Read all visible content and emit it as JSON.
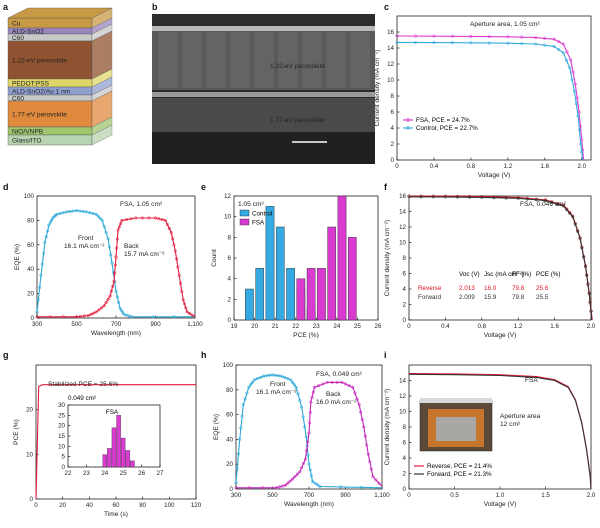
{
  "panel_letters": [
    "a",
    "b",
    "c",
    "d",
    "e",
    "f",
    "g",
    "h",
    "i"
  ],
  "colors": {
    "cyan": "#2aa7d8",
    "magenta": "#d93bd0",
    "red": "#e21b3a",
    "purple": "#c422b8",
    "blue": "#35a9e1",
    "dark": "#333333",
    "accent_red": "#d8141e"
  },
  "panel_a": {
    "layers": [
      {
        "label": "Cu",
        "color": "#c99a45"
      },
      {
        "label": "ALD-SnO2",
        "color": "#9a86bf"
      },
      {
        "label": "C60",
        "color": "#c8c8c8"
      },
      {
        "label": "1.22-eV perovskite",
        "color": "#8f5331"
      },
      {
        "label": "PEDOT:PSS",
        "color": "#dfd66a"
      },
      {
        "label": "ALD-SnO2/Au 1 nm",
        "color": "#8f9fcf"
      },
      {
        "label": "C60",
        "color": "#c8c8c8"
      },
      {
        "label": "1.77-eV perovskite",
        "color": "#e08a3e"
      },
      {
        "label": "NiO/VNPB",
        "color": "#9fc56f"
      },
      {
        "label": "Glass/ITO",
        "color": "#b7d3b0"
      }
    ]
  },
  "panel_b": {
    "labels": [
      "1.22-eV perovskite",
      "1.77-eV perovskite"
    ],
    "scale_bar": "1 μm"
  },
  "chart_data": [
    {
      "panel": "c",
      "type": "line",
      "title": "Aperture area, 1.05 cm²",
      "xlabel": "Voltage (V)",
      "ylabel": "Current density (mA cm⁻²)",
      "xlim": [
        0,
        2.1
      ],
      "ylim": [
        0,
        18
      ],
      "xticks": [
        "0",
        "0.4",
        "0.8",
        "1.2",
        "1.6",
        "2.0"
      ],
      "yticks": [
        "0",
        "2",
        "4",
        "6",
        "8",
        "10",
        "12",
        "14",
        "16"
      ],
      "legend_position": "bottom-left",
      "series": [
        {
          "name": "FSA, PCE = 24.7%",
          "color": "#d93bd0",
          "points": [
            [
              0,
              15.5
            ],
            [
              0.4,
              15.48
            ],
            [
              0.8,
              15.45
            ],
            [
              1.2,
              15.4
            ],
            [
              1.5,
              15.3
            ],
            [
              1.7,
              15.1
            ],
            [
              1.8,
              14.5
            ],
            [
              1.88,
              12.5
            ],
            [
              1.93,
              9.5
            ],
            [
              1.97,
              6
            ],
            [
              2.0,
              2.5
            ],
            [
              2.02,
              0
            ]
          ]
        },
        {
          "name": "Control, PCE = 22.7%",
          "color": "#35a9e1",
          "points": [
            [
              0,
              14.7
            ],
            [
              0.4,
              14.68
            ],
            [
              0.8,
              14.65
            ],
            [
              1.2,
              14.6
            ],
            [
              1.5,
              14.5
            ],
            [
              1.7,
              14.2
            ],
            [
              1.8,
              13.4
            ],
            [
              1.87,
              11.5
            ],
            [
              1.92,
              8.6
            ],
            [
              1.96,
              5.5
            ],
            [
              1.99,
              2
            ],
            [
              2.01,
              0
            ]
          ]
        }
      ]
    },
    {
      "panel": "d",
      "type": "line",
      "title": "FSA, 1.05 cm²",
      "xlabel": "Wavelength (nm)",
      "ylabel": "EQE (%)",
      "xlim": [
        300,
        1100
      ],
      "ylim": [
        0,
        100
      ],
      "xticks": [
        "300",
        "500",
        "700",
        "900",
        "1,100"
      ],
      "yticks": [
        "0",
        "20",
        "40",
        "60",
        "80",
        "100"
      ],
      "annotations": [
        {
          "text": "Front",
          "sub": "16.1 mA cm⁻²",
          "color": "#2aa7d8"
        },
        {
          "text": "Back",
          "sub": "15.7 mA cm⁻²",
          "color": "#e21b3a"
        }
      ],
      "series": [
        {
          "name": "Front",
          "color": "#2aa7d8",
          "points": [
            [
              300,
              5
            ],
            [
              320,
              35
            ],
            [
              340,
              62
            ],
            [
              360,
              76
            ],
            [
              380,
              82
            ],
            [
              400,
              85
            ],
            [
              450,
              87
            ],
            [
              500,
              88
            ],
            [
              550,
              87
            ],
            [
              600,
              85
            ],
            [
              630,
              80
            ],
            [
              660,
              65
            ],
            [
              680,
              45
            ],
            [
              700,
              22
            ],
            [
              720,
              8
            ],
            [
              740,
              3
            ],
            [
              780,
              1
            ],
            [
              1100,
              1
            ]
          ]
        },
        {
          "name": "Back",
          "color": "#e21b3a",
          "points": [
            [
              300,
              1
            ],
            [
              500,
              1
            ],
            [
              560,
              2
            ],
            [
              600,
              5
            ],
            [
              640,
              10
            ],
            [
              670,
              18
            ],
            [
              690,
              30
            ],
            [
              700,
              50
            ],
            [
              710,
              72
            ],
            [
              730,
              80
            ],
            [
              800,
              82
            ],
            [
              900,
              82
            ],
            [
              950,
              80
            ],
            [
              980,
              70
            ],
            [
              1000,
              55
            ],
            [
              1020,
              35
            ],
            [
              1040,
              15
            ],
            [
              1060,
              5
            ],
            [
              1100,
              1
            ]
          ]
        }
      ]
    },
    {
      "panel": "e",
      "type": "bar",
      "title": "1.05 cm²",
      "xlabel": "PCE (%)",
      "ylabel": "Count",
      "xlim": [
        19,
        26
      ],
      "ylim": [
        0,
        12
      ],
      "xticks": [
        "19",
        "20",
        "21",
        "22",
        "23",
        "24",
        "25",
        "26"
      ],
      "yticks": [
        "0",
        "2",
        "4",
        "6",
        "8",
        "10",
        "12"
      ],
      "legend_position": "top-left",
      "series": [
        {
          "name": "Control",
          "color": "#35a9e1",
          "bins": [
            19.75,
            20.25,
            20.75,
            21.25,
            21.75,
            22.25,
            22.75,
            23.25
          ],
          "values": [
            3,
            5,
            11,
            9,
            5,
            3,
            1,
            0
          ]
        },
        {
          "name": "FSA",
          "color": "#d93bd0",
          "bins": [
            22.25,
            22.75,
            23.25,
            23.75,
            24.25,
            24.75
          ],
          "values": [
            4,
            5,
            5,
            9,
            12,
            8
          ]
        }
      ]
    },
    {
      "panel": "f",
      "type": "line",
      "title": "FSA, 0.049 cm²",
      "xlabel": "Voltage (V)",
      "ylabel": "Current density (mA cm⁻²)",
      "xlim": [
        0,
        2.0
      ],
      "ylim": [
        0,
        16
      ],
      "xticks": [
        "0",
        "0.4",
        "0.8",
        "1.2",
        "1.6",
        "2.0"
      ],
      "yticks": [
        "0",
        "2",
        "4",
        "6",
        "8",
        "10",
        "12",
        "14",
        "16"
      ],
      "table": {
        "headers": [
          "",
          "Voc (V)",
          "Jsc (mA cm⁻²)",
          "FF (%)",
          "PCE (%)"
        ],
        "rows": [
          {
            "label": "Reverse",
            "values": [
              "2.013",
              "16.0",
              "79.8",
              "25.6"
            ],
            "color": "#d8141e"
          },
          {
            "label": "Forward",
            "values": [
              "2.009",
              "15.9",
              "79.8",
              "25.5"
            ],
            "color": "#333333"
          }
        ]
      },
      "series": [
        {
          "name": "Reverse",
          "color": "#d8141e",
          "points": [
            [
              0,
              16.0
            ],
            [
              0.4,
              15.98
            ],
            [
              0.8,
              15.92
            ],
            [
              1.2,
              15.8
            ],
            [
              1.5,
              15.5
            ],
            [
              1.7,
              14.8
            ],
            [
              1.8,
              13.4
            ],
            [
              1.88,
              10.6
            ],
            [
              1.94,
              7
            ],
            [
              1.98,
              3.5
            ],
            [
              2.013,
              0
            ]
          ]
        },
        {
          "name": "Forward",
          "color": "#333333",
          "points": [
            [
              0,
              15.9
            ],
            [
              0.4,
              15.88
            ],
            [
              0.8,
              15.82
            ],
            [
              1.2,
              15.7
            ],
            [
              1.5,
              15.4
            ],
            [
              1.7,
              14.7
            ],
            [
              1.8,
              13.3
            ],
            [
              1.88,
              10.5
            ],
            [
              1.94,
              6.9
            ],
            [
              1.98,
              3.4
            ],
            [
              2.009,
              0
            ]
          ]
        }
      ]
    },
    {
      "panel": "g",
      "type": "line",
      "title": "Stabilized PCE = 25.6%",
      "xlabel": "Time (s)",
      "ylabel": "PCE (%)",
      "xlim": [
        0,
        120
      ],
      "ylim": [
        0,
        30
      ],
      "xticks": [
        "0",
        "20",
        "40",
        "60",
        "80",
        "100",
        "120"
      ],
      "yticks": [
        "0",
        "10",
        "20"
      ],
      "series": [
        {
          "name": "",
          "color": "#e21b3a",
          "points": [
            [
              0,
              0
            ],
            [
              2,
              25.2
            ],
            [
              5,
              25.6
            ],
            [
              120,
              25.6
            ]
          ]
        }
      ],
      "inset": {
        "type": "bar",
        "title": "FSA",
        "subtitle": "0.049 cm²",
        "xlim": [
          22,
          27
        ],
        "ylim": [
          0,
          30
        ],
        "xticks": [
          "22",
          "23",
          "24",
          "25",
          "26",
          "27"
        ],
        "yticks": [
          "0",
          "5",
          "10",
          "15",
          "20",
          "25",
          "30"
        ],
        "color": "#d93bd0",
        "bins": [
          24.0,
          24.25,
          24.5,
          24.75,
          25.0,
          25.25,
          25.5
        ],
        "values": [
          6,
          9,
          19,
          25,
          14,
          8,
          3
        ]
      }
    },
    {
      "panel": "h",
      "type": "line",
      "title": "FSA, 0.049 cm²",
      "xlabel": "Wavelength (nm)",
      "ylabel": "EQE (%)",
      "xlim": [
        300,
        1100
      ],
      "ylim": [
        0,
        100
      ],
      "xticks": [
        "300",
        "500",
        "700",
        "900",
        "1,100"
      ],
      "yticks": [
        "0",
        "20",
        "40",
        "60",
        "80",
        "100"
      ],
      "annotations": [
        {
          "text": "Front",
          "sub": "16.1 mA cm⁻²",
          "color": "#222"
        },
        {
          "text": "Back",
          "sub": "16.0 mA cm⁻²",
          "color": "#222"
        }
      ],
      "series": [
        {
          "name": "Front",
          "color": "#2aa7d8",
          "points": [
            [
              300,
              5
            ],
            [
              320,
              40
            ],
            [
              340,
              68
            ],
            [
              370,
              82
            ],
            [
              400,
              88
            ],
            [
              450,
              91
            ],
            [
              500,
              92
            ],
            [
              550,
              91
            ],
            [
              600,
              88
            ],
            [
              630,
              82
            ],
            [
              660,
              66
            ],
            [
              685,
              42
            ],
            [
              700,
              20
            ],
            [
              720,
              6
            ],
            [
              760,
              2
            ],
            [
              1100,
              1
            ]
          ]
        },
        {
          "name": "Back",
          "color": "#c422b8",
          "points": [
            [
              300,
              1
            ],
            [
              520,
              1
            ],
            [
              570,
              3
            ],
            [
              610,
              8
            ],
            [
              650,
              14
            ],
            [
              680,
              24
            ],
            [
              700,
              45
            ],
            [
              710,
              70
            ],
            [
              730,
              82
            ],
            [
              800,
              86
            ],
            [
              880,
              86
            ],
            [
              940,
              82
            ],
            [
              975,
              68
            ],
            [
              1000,
              50
            ],
            [
              1025,
              28
            ],
            [
              1050,
              10
            ],
            [
              1100,
              2
            ]
          ]
        }
      ]
    },
    {
      "panel": "i",
      "type": "line",
      "title": "FSA",
      "xlabel": "Voltage (V)",
      "ylabel": "Current density (mA cm⁻²)",
      "xlim": [
        0,
        2.0
      ],
      "ylim": [
        0,
        16
      ],
      "xticks": [
        "0",
        "0.5",
        "1.0",
        "1.5",
        "2.0"
      ],
      "yticks": [
        "0",
        "2",
        "4",
        "6",
        "8",
        "10",
        "12",
        "14"
      ],
      "inset_label": "Aperture area\n12 cm²",
      "legend_position": "bottom-left",
      "series": [
        {
          "name": "Reverse, PCE = 21.4%",
          "color": "#e21b3a",
          "points": [
            [
              0,
              14.9
            ],
            [
              0.5,
              14.85
            ],
            [
              1.0,
              14.75
            ],
            [
              1.4,
              14.5
            ],
            [
              1.6,
              14.1
            ],
            [
              1.75,
              13.2
            ],
            [
              1.83,
              11.5
            ],
            [
              1.9,
              8.5
            ],
            [
              1.95,
              5.2
            ],
            [
              1.99,
              1.8
            ],
            [
              2.0,
              0
            ]
          ]
        },
        {
          "name": "Forward, PCE = 21.3%",
          "color": "#333333",
          "points": [
            [
              0,
              14.8
            ],
            [
              0.5,
              14.75
            ],
            [
              1.0,
              14.65
            ],
            [
              1.4,
              14.4
            ],
            [
              1.6,
              14.0
            ],
            [
              1.75,
              13.1
            ],
            [
              1.83,
              11.4
            ],
            [
              1.9,
              8.4
            ],
            [
              1.95,
              5.1
            ],
            [
              1.99,
              1.7
            ],
            [
              2.0,
              0
            ]
          ]
        }
      ]
    }
  ]
}
